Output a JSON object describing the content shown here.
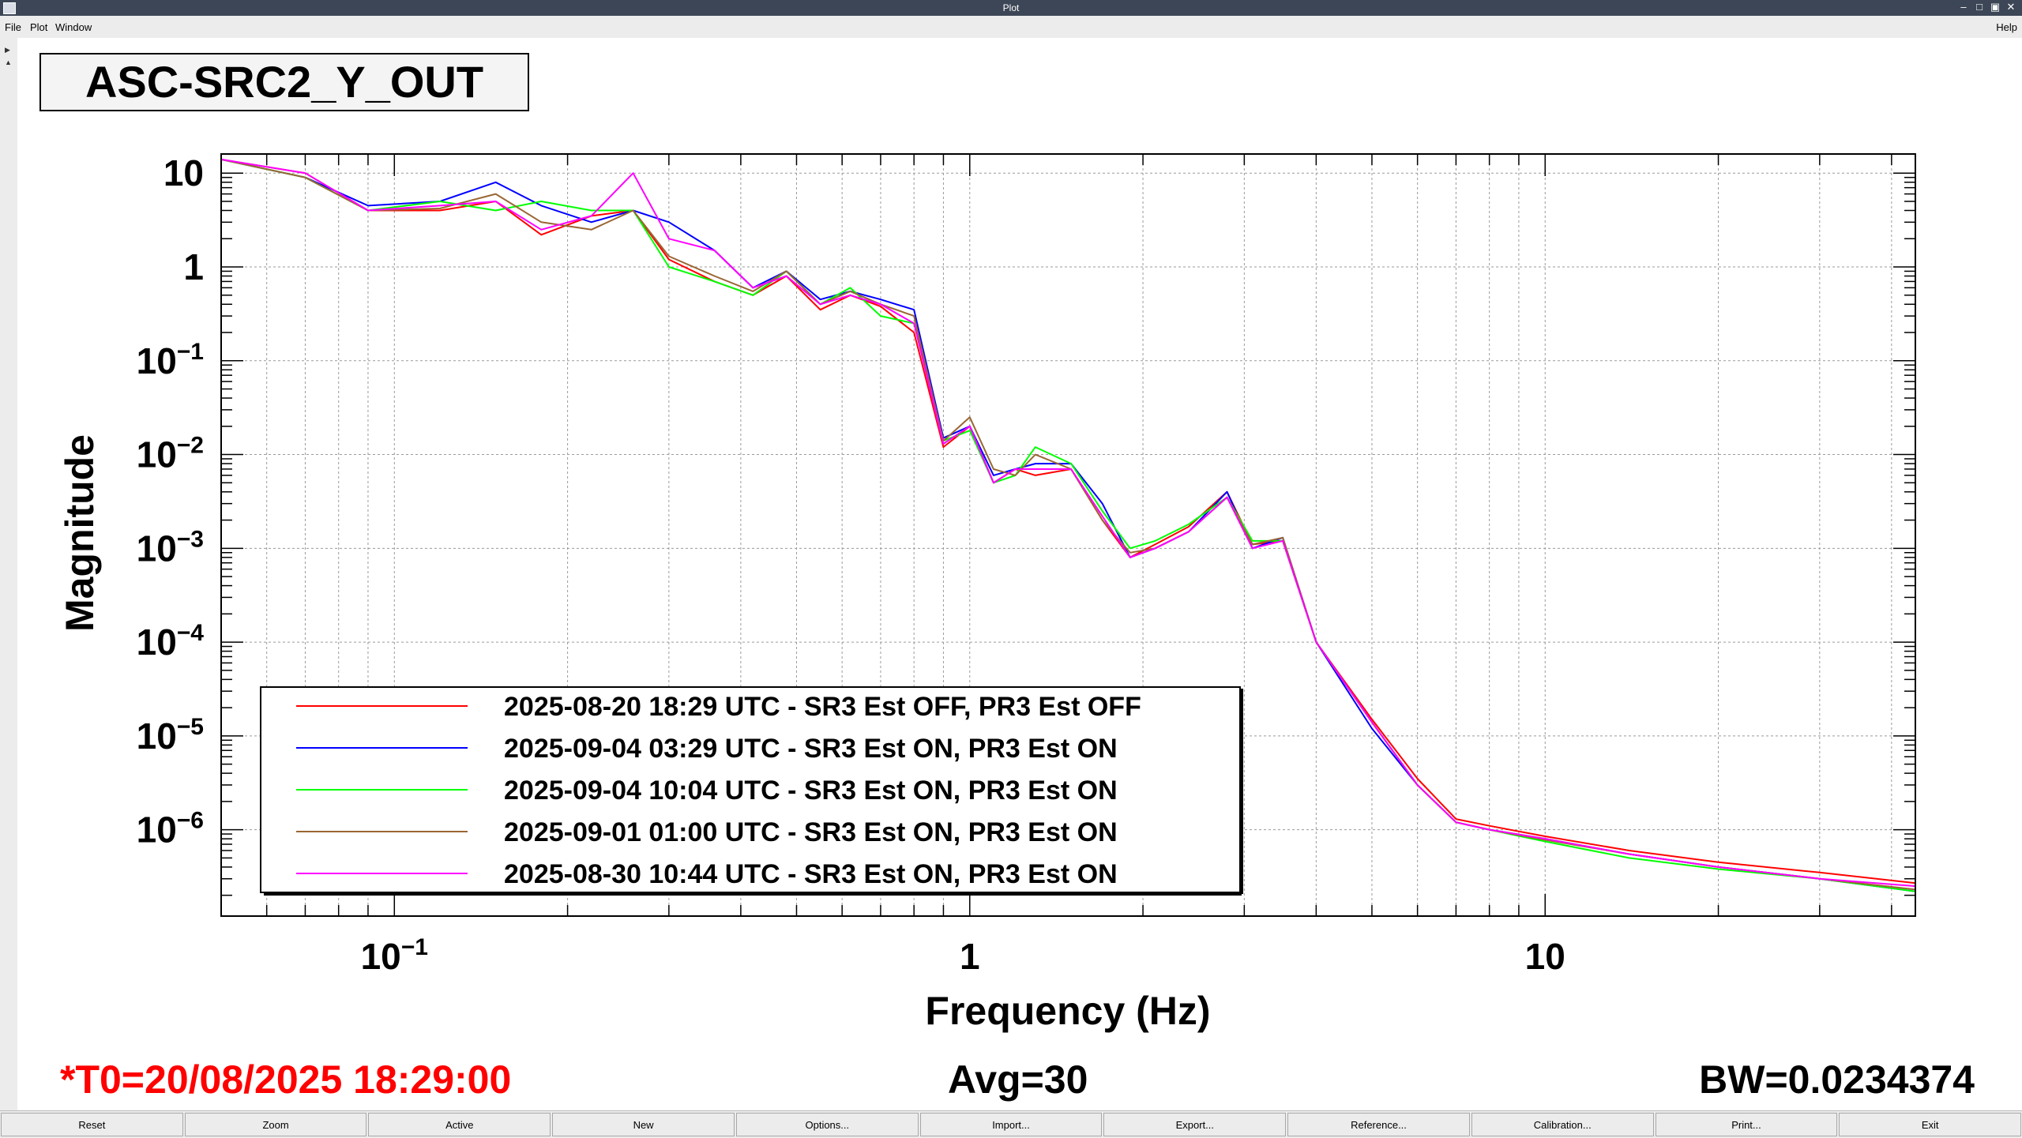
{
  "window": {
    "title": "Plot",
    "menus": [
      "File",
      "Plot",
      "Window"
    ],
    "help": "Help",
    "controls": [
      "–",
      "□",
      "▣",
      "✕"
    ]
  },
  "trace_title": "ASC-SRC2_Y_OUT",
  "footer": {
    "t0": "*T0=20/08/2025 18:29:00",
    "avg": "Avg=30",
    "bw": "BW=0.0234374"
  },
  "buttons": [
    "Reset",
    "Zoom",
    "Active",
    "New",
    "Options...",
    "Import...",
    "Export...",
    "Reference...",
    "Calibration...",
    "Print...",
    "Exit"
  ],
  "colors": {
    "red": "#ff0000",
    "blue": "#0000ff",
    "green": "#00ff00",
    "brown": "#996633",
    "magenta": "#ff00ff",
    "t0_text": "#ff0000"
  },
  "chart_data": {
    "type": "line",
    "xlabel": "Frequency (Hz)",
    "ylabel": "Magnitude",
    "xscale": "log",
    "yscale": "log",
    "xlim": [
      0.05,
      44
    ],
    "ylim": [
      1.2e-07,
      16
    ],
    "grid": true,
    "legend_position": "bottom-left",
    "x_ticks": [
      {
        "value": 0.1,
        "base": "10",
        "exp": "−1"
      },
      {
        "value": 1,
        "base": "1",
        "exp": ""
      },
      {
        "value": 10,
        "base": "10",
        "exp": ""
      }
    ],
    "y_ticks": [
      {
        "value": 10,
        "base": "10",
        "exp": ""
      },
      {
        "value": 1,
        "base": "1",
        "exp": ""
      },
      {
        "value": 0.1,
        "base": "10",
        "exp": "−1"
      },
      {
        "value": 0.01,
        "base": "10",
        "exp": "−2"
      },
      {
        "value": 0.001,
        "base": "10",
        "exp": "−3"
      },
      {
        "value": 0.0001,
        "base": "10",
        "exp": "−4"
      },
      {
        "value": 1e-05,
        "base": "10",
        "exp": "−5"
      },
      {
        "value": 1e-06,
        "base": "10",
        "exp": "−6"
      }
    ],
    "series": [
      {
        "name": "2025-08-20 18:29 UTC - SR3 Est OFF, PR3 Est OFF",
        "color": "#ff0000",
        "x": [
          0.05,
          0.07,
          0.09,
          0.12,
          0.15,
          0.18,
          0.22,
          0.26,
          0.3,
          0.36,
          0.42,
          0.48,
          0.55,
          0.62,
          0.7,
          0.8,
          0.9,
          1.0,
          1.1,
          1.2,
          1.3,
          1.5,
          1.7,
          1.9,
          2.1,
          2.4,
          2.8,
          3.1,
          3.5,
          4.0,
          5.0,
          6.0,
          7.0,
          8.0,
          10,
          14,
          20,
          30,
          44
        ],
        "y": [
          14,
          10,
          4,
          4,
          5,
          2.2,
          3.5,
          4,
          1.2,
          0.7,
          0.5,
          0.8,
          0.35,
          0.5,
          0.38,
          0.2,
          0.012,
          0.02,
          0.005,
          0.007,
          0.006,
          0.007,
          0.002,
          0.0008,
          0.0011,
          0.0017,
          0.004,
          0.0011,
          0.0012,
          0.0001,
          1.5e-05,
          3.5e-06,
          1.3e-06,
          1.1e-06,
          8.5e-07,
          6e-07,
          4.5e-07,
          3.5e-07,
          2.7e-07
        ]
      },
      {
        "name": "2025-09-04 03:29 UTC - SR3 Est ON, PR3 Est ON",
        "color": "#0000ff",
        "x": [
          0.05,
          0.07,
          0.09,
          0.12,
          0.15,
          0.18,
          0.22,
          0.26,
          0.3,
          0.36,
          0.42,
          0.48,
          0.55,
          0.62,
          0.7,
          0.8,
          0.9,
          1.0,
          1.1,
          1.2,
          1.3,
          1.5,
          1.7,
          1.9,
          2.1,
          2.4,
          2.8,
          3.1,
          3.5,
          4.0,
          5.0,
          6.0,
          7.0,
          8.0,
          10,
          14,
          20,
          30,
          44
        ],
        "y": [
          14,
          9,
          4.5,
          5,
          8,
          4.5,
          3,
          4,
          3,
          1.5,
          0.6,
          0.9,
          0.45,
          0.55,
          0.45,
          0.35,
          0.015,
          0.02,
          0.006,
          0.007,
          0.008,
          0.008,
          0.003,
          0.0008,
          0.001,
          0.0015,
          0.004,
          0.001,
          0.0013,
          0.0001,
          1.2e-05,
          3e-06,
          1.2e-06,
          1e-06,
          8e-07,
          5.5e-07,
          4e-07,
          3e-07,
          2.2e-07
        ]
      },
      {
        "name": "2025-09-04 10:04 UTC - SR3 Est ON, PR3 Est ON",
        "color": "#00ff00",
        "x": [
          0.05,
          0.07,
          0.09,
          0.12,
          0.15,
          0.18,
          0.22,
          0.26,
          0.3,
          0.36,
          0.42,
          0.48,
          0.55,
          0.62,
          0.7,
          0.8,
          0.9,
          1.0,
          1.1,
          1.2,
          1.3,
          1.5,
          1.7,
          1.9,
          2.1,
          2.4,
          2.8,
          3.1,
          3.5,
          4.0,
          5.0,
          6.0,
          7.0,
          8.0,
          10,
          14,
          20,
          30,
          44
        ],
        "y": [
          14,
          9,
          4,
          5,
          4,
          5,
          4,
          4,
          1,
          0.7,
          0.5,
          0.9,
          0.4,
          0.6,
          0.3,
          0.25,
          0.014,
          0.018,
          0.005,
          0.006,
          0.012,
          0.008,
          0.0025,
          0.001,
          0.0012,
          0.0018,
          0.0035,
          0.0012,
          0.0012,
          0.0001,
          1.4e-05,
          3e-06,
          1.2e-06,
          1e-06,
          7.5e-07,
          5e-07,
          3.8e-07,
          3e-07,
          2.2e-07
        ]
      },
      {
        "name": "2025-09-01 01:00 UTC - SR3 Est ON, PR3 Est ON",
        "color": "#996633",
        "x": [
          0.05,
          0.07,
          0.09,
          0.12,
          0.15,
          0.18,
          0.22,
          0.26,
          0.3,
          0.36,
          0.42,
          0.48,
          0.55,
          0.62,
          0.7,
          0.8,
          0.9,
          1.0,
          1.1,
          1.2,
          1.3,
          1.5,
          1.7,
          1.9,
          2.1,
          2.4,
          2.8,
          3.1,
          3.5,
          4.0,
          5.0,
          6.0,
          7.0,
          8.0,
          10,
          14,
          20,
          30,
          44
        ],
        "y": [
          14,
          9,
          4,
          4.2,
          6,
          3,
          2.5,
          4,
          1.3,
          0.8,
          0.55,
          0.9,
          0.4,
          0.55,
          0.4,
          0.3,
          0.014,
          0.025,
          0.007,
          0.006,
          0.01,
          0.007,
          0.002,
          0.0009,
          0.001,
          0.0015,
          0.0035,
          0.0011,
          0.0013,
          0.0001,
          1.4e-05,
          3e-06,
          1.2e-06,
          1e-06,
          7.8e-07,
          5.5e-07,
          4e-07,
          3e-07,
          2.3e-07
        ]
      },
      {
        "name": "2025-08-30 10:44 UTC - SR3 Est ON, PR3 Est ON",
        "color": "#ff00ff",
        "x": [
          0.05,
          0.07,
          0.09,
          0.12,
          0.15,
          0.18,
          0.22,
          0.26,
          0.3,
          0.36,
          0.42,
          0.48,
          0.55,
          0.62,
          0.7,
          0.8,
          0.9,
          1.0,
          1.1,
          1.2,
          1.3,
          1.5,
          1.7,
          1.9,
          2.1,
          2.4,
          2.8,
          3.1,
          3.5,
          4.0,
          5.0,
          6.0,
          7.0,
          8.0,
          10,
          14,
          20,
          30,
          44
        ],
        "y": [
          14,
          10,
          4,
          4.5,
          5,
          2.5,
          3.5,
          10,
          2,
          1.5,
          0.6,
          0.8,
          0.4,
          0.5,
          0.4,
          0.25,
          0.013,
          0.02,
          0.005,
          0.007,
          0.007,
          0.007,
          0.0022,
          0.0008,
          0.001,
          0.0015,
          0.0035,
          0.001,
          0.0012,
          0.0001,
          1.4e-05,
          3e-06,
          1.2e-06,
          1e-06,
          8e-07,
          5.5e-07,
          4e-07,
          3e-07,
          2.5e-07
        ]
      }
    ]
  }
}
